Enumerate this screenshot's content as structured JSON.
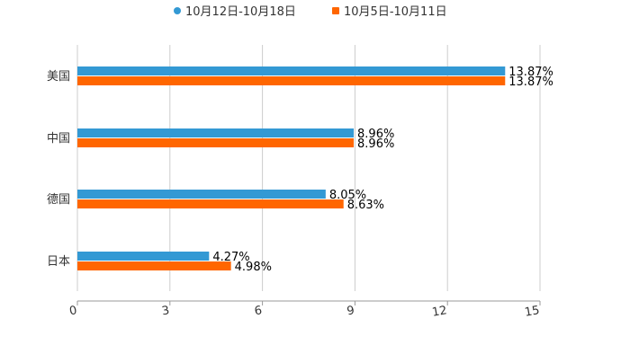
{
  "chart_data": {
    "type": "bar",
    "orientation": "horizontal",
    "title": "",
    "categories": [
      "美国",
      "中国",
      "德国",
      "日本"
    ],
    "series": [
      {
        "name": "10月12日-10月18日",
        "color": "#3399d4",
        "values": [
          13.87,
          8.96,
          8.05,
          4.27
        ],
        "labels": [
          "13.87%",
          "8.96%",
          "8.05%",
          "4.27%"
        ]
      },
      {
        "name": "10月5日-10月11日",
        "color": "#ff6600",
        "values": [
          13.87,
          8.96,
          8.63,
          4.98
        ],
        "labels": [
          "13.87%",
          "8.96%",
          "8.63%",
          "4.98%"
        ]
      }
    ],
    "xlim": [
      0,
      15
    ],
    "xticks": [
      0,
      3,
      6,
      9,
      12,
      15
    ],
    "xtick_labels": [
      "0",
      "3",
      "6",
      "9",
      "12",
      "15"
    ],
    "grid": true,
    "legend_position": "top-center"
  }
}
